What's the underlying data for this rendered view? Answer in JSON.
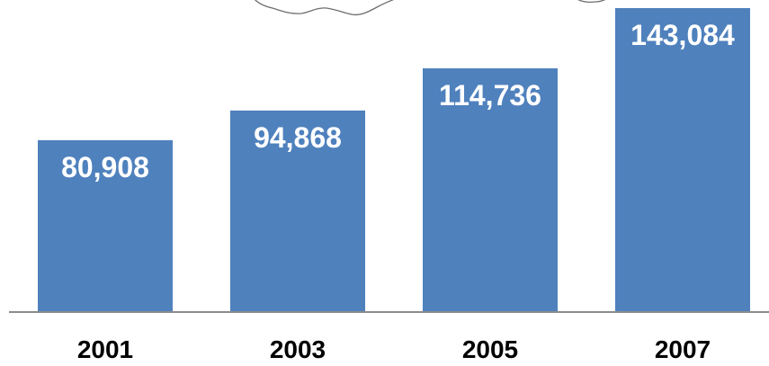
{
  "chart_data": {
    "type": "bar",
    "categories": [
      "2001",
      "2003",
      "2005",
      "2007"
    ],
    "values": [
      80908,
      94868,
      114736,
      143084
    ],
    "value_labels": [
      "80,908",
      "94,868",
      "114,736",
      "143,084"
    ],
    "title": "",
    "xlabel": "",
    "ylabel": "",
    "ylim": [
      0,
      143084
    ],
    "grid": false,
    "legend": "none",
    "bar_color": "#4F81BD",
    "value_label_color": "#FFFFFF",
    "tick_label_color": "#000000"
  }
}
